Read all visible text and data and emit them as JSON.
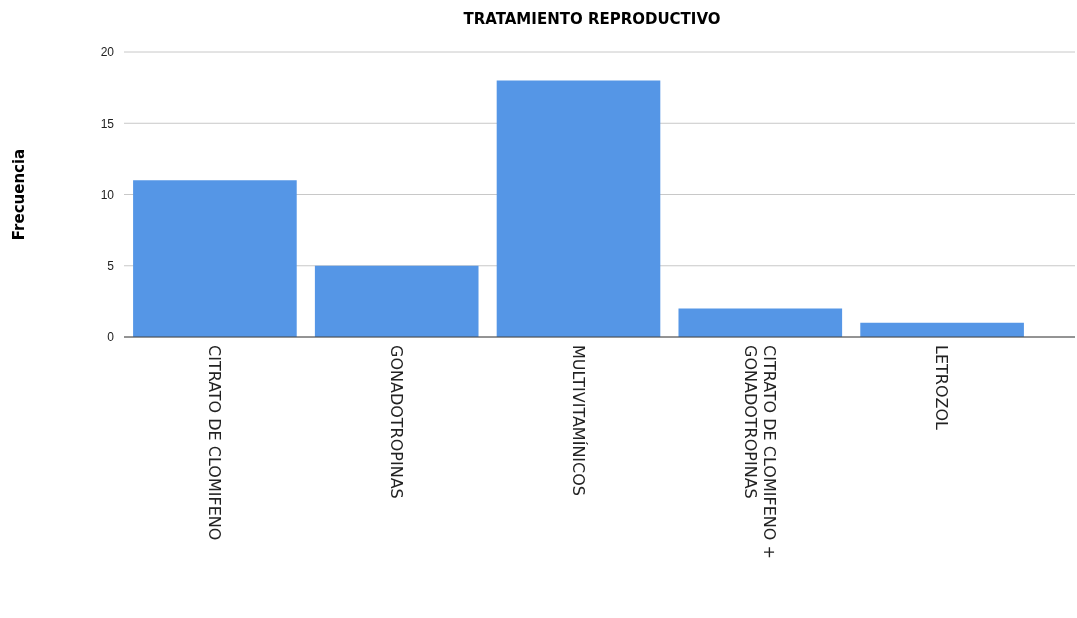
{
  "chart_data": {
    "type": "bar",
    "title": "TRATAMIENTO REPRODUCTIVO",
    "ylabel": "Frecuencia",
    "categories": [
      "CITRATO DE CLOMIFENO",
      "GONADOTROPINAS",
      "MULTIVITAMÍNICOS",
      "CITRATO DE CLOMIFENO + GONADOTROPINAS",
      "LETROZOL"
    ],
    "values": [
      11,
      5,
      18,
      2,
      1
    ],
    "color": "#5596e6",
    "ylim": [
      0,
      20
    ],
    "yticks": [
      0,
      5,
      10,
      15,
      20
    ],
    "grid": "y"
  }
}
